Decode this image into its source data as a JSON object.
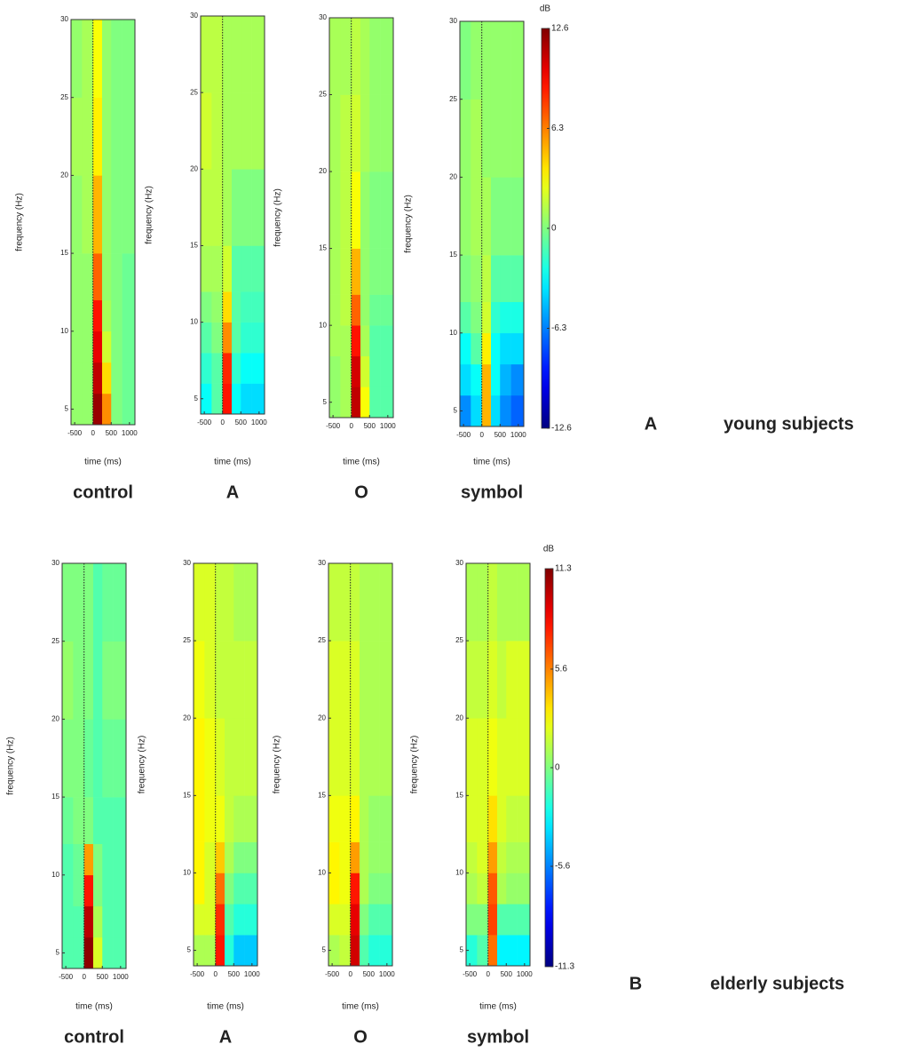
{
  "chart_data": [
    {
      "type": "heatmap",
      "title": "control",
      "xlabel": "time (ms)",
      "ylabel": "frequency (Hz)",
      "xlim": [
        -600,
        1150
      ],
      "ylim": [
        4,
        30
      ],
      "xticks": [
        -500,
        0,
        500,
        1000
      ],
      "yticks": [
        5,
        10,
        15,
        20,
        25,
        30
      ],
      "marker_x": 0,
      "xbins": [
        -600,
        -300,
        0,
        250,
        500,
        800,
        1150
      ],
      "ybins": [
        4,
        6,
        8,
        10,
        12,
        15,
        20,
        25,
        30
      ],
      "z": [
        [
          0.5,
          0.5,
          12,
          6,
          0,
          -0.5
        ],
        [
          0.5,
          0.5,
          11,
          4,
          0,
          -0.5
        ],
        [
          0.5,
          0.5,
          10,
          2,
          0,
          -0.5
        ],
        [
          0.5,
          0.5,
          9,
          1,
          0,
          -0.5
        ],
        [
          0.5,
          0.5,
          7,
          0.5,
          0,
          -0.5
        ],
        [
          0.5,
          1,
          5,
          0.5,
          0,
          0
        ],
        [
          1,
          1,
          3.5,
          0.5,
          0,
          0
        ],
        [
          0.5,
          1,
          3,
          0.5,
          0,
          0
        ]
      ]
    },
    {
      "type": "heatmap",
      "title": "A",
      "xlabel": "time (ms)",
      "ylabel": "frequency (Hz)",
      "xlim": [
        -600,
        1150
      ],
      "ylim": [
        4,
        30
      ],
      "xticks": [
        -500,
        0,
        500,
        1000
      ],
      "yticks": [
        5,
        10,
        15,
        20,
        25,
        30
      ],
      "marker_x": 0,
      "xbins": [
        -600,
        -300,
        0,
        250,
        500,
        800,
        1150
      ],
      "ybins": [
        4,
        6,
        8,
        10,
        12,
        15,
        20,
        25,
        30
      ],
      "z": [
        [
          -3,
          -1,
          9,
          -3,
          -4,
          -4
        ],
        [
          -2,
          -1,
          8.5,
          -2,
          -3,
          -3
        ],
        [
          -1,
          0,
          6,
          -1,
          -2,
          -2
        ],
        [
          0,
          0.5,
          4,
          -1,
          -1.5,
          -1.5
        ],
        [
          1,
          1,
          2,
          -1,
          -1,
          -1
        ],
        [
          1.5,
          1.5,
          1,
          0,
          0,
          0
        ],
        [
          2,
          1.5,
          1,
          1,
          1,
          1
        ],
        [
          1.5,
          1.5,
          1,
          1,
          1,
          1
        ]
      ]
    },
    {
      "type": "heatmap",
      "title": "O",
      "xlabel": "time (ms)",
      "ylabel": "frequency (Hz)",
      "xlim": [
        -600,
        1150
      ],
      "ylim": [
        4,
        30
      ],
      "xticks": [
        -500,
        0,
        500,
        1000
      ],
      "yticks": [
        5,
        10,
        15,
        20,
        25,
        30
      ],
      "marker_x": 0,
      "xbins": [
        -600,
        -300,
        0,
        250,
        500,
        800,
        1150
      ],
      "ybins": [
        4,
        6,
        8,
        10,
        12,
        15,
        20,
        25,
        30
      ],
      "z": [
        [
          0.5,
          1,
          11,
          3,
          -1,
          -1
        ],
        [
          0.5,
          1,
          10.5,
          2,
          -1,
          -1
        ],
        [
          1,
          1,
          9,
          1,
          -1,
          -1
        ],
        [
          1,
          1.5,
          7,
          0.5,
          -0.5,
          -0.5
        ],
        [
          1,
          1.5,
          5,
          0.5,
          0,
          0
        ],
        [
          1,
          1.5,
          3,
          0.5,
          0,
          0
        ],
        [
          1,
          1.5,
          2,
          1,
          0.5,
          0.5
        ],
        [
          1,
          1,
          1.5,
          1,
          0.5,
          0.5
        ]
      ]
    },
    {
      "type": "heatmap",
      "title": "symbol",
      "xlabel": "time (ms)",
      "ylabel": "frequency (Hz)",
      "xlim": [
        -600,
        1150
      ],
      "ylim": [
        4,
        30
      ],
      "xticks": [
        -500,
        0,
        500,
        1000
      ],
      "yticks": [
        5,
        10,
        15,
        20,
        25,
        30
      ],
      "marker_x": 0,
      "xbins": [
        -600,
        -300,
        0,
        250,
        500,
        800,
        1150
      ],
      "ybins": [
        4,
        6,
        8,
        10,
        12,
        15,
        20,
        25,
        30
      ],
      "z": [
        [
          -6,
          -4,
          5,
          -4,
          -6,
          -7
        ],
        [
          -4,
          -3,
          5,
          -3,
          -5,
          -6
        ],
        [
          -3,
          -1,
          3.5,
          -3,
          -4,
          -4
        ],
        [
          -1,
          0,
          2,
          -2,
          -2.5,
          -2.5
        ],
        [
          0,
          0.5,
          1.5,
          -1,
          -1,
          -1
        ],
        [
          0.5,
          1,
          1,
          0,
          0,
          0
        ],
        [
          0.5,
          1,
          0.5,
          0.5,
          0.5,
          0.5
        ],
        [
          0,
          0.5,
          0.5,
          0.5,
          0.5,
          0.5
        ]
      ]
    },
    {
      "type": "colorbar",
      "label": "dB",
      "zlim": [
        -12.6,
        12.6
      ],
      "zticks": [
        -12.6,
        -6.3,
        0,
        6.3,
        12.6
      ]
    },
    {
      "type": "heatmap",
      "title": "control",
      "xlabel": "time (ms)",
      "ylabel": "frequency (Hz)",
      "xlim": [
        -600,
        1150
      ],
      "ylim": [
        4,
        30
      ],
      "xticks": [
        -500,
        0,
        500,
        1000
      ],
      "yticks": [
        5,
        10,
        15,
        20,
        25,
        30
      ],
      "marker_x": 0,
      "xbins": [
        -600,
        -300,
        0,
        250,
        500,
        800,
        1150
      ],
      "ybins": [
        4,
        6,
        8,
        10,
        12,
        15,
        20,
        25,
        30
      ],
      "z": [
        [
          -1,
          -1,
          11,
          2,
          -1,
          -1
        ],
        [
          -1,
          -1,
          10,
          1,
          -1,
          -1
        ],
        [
          -1,
          -0.5,
          8,
          0,
          -1,
          -1
        ],
        [
          -1,
          -0.5,
          5,
          0,
          -1,
          -1
        ],
        [
          -0.5,
          0,
          0,
          -1,
          -1,
          -1
        ],
        [
          0,
          0,
          -0.5,
          -1,
          -0.5,
          -0.5
        ],
        [
          0.5,
          0,
          0,
          -1,
          0,
          0
        ],
        [
          0,
          0,
          0,
          -1,
          -0.5,
          -0.5
        ]
      ]
    },
    {
      "type": "heatmap",
      "title": "A",
      "xlabel": "time (ms)",
      "ylabel": "frequency (Hz)",
      "xlim": [
        -600,
        1150
      ],
      "ylim": [
        4,
        30
      ],
      "xticks": [
        -500,
        0,
        500,
        1000
      ],
      "yticks": [
        5,
        10,
        15,
        20,
        25,
        30
      ],
      "marker_x": 0,
      "xbins": [
        -600,
        -300,
        0,
        250,
        500,
        800,
        1150
      ],
      "ybins": [
        4,
        6,
        8,
        10,
        12,
        15,
        20,
        25,
        30
      ],
      "z": [
        [
          1,
          1,
          8,
          -2,
          -4,
          -4
        ],
        [
          2,
          2,
          7.5,
          -1,
          -2,
          -2
        ],
        [
          3,
          2,
          6,
          0,
          -1,
          -1
        ],
        [
          3,
          2,
          4,
          1,
          0,
          0
        ],
        [
          3,
          2.5,
          2.5,
          1.5,
          1,
          1
        ],
        [
          3,
          2.5,
          2,
          1.5,
          1.5,
          1.5
        ],
        [
          2.5,
          2,
          1.5,
          1.5,
          1.5,
          1.5
        ],
        [
          2,
          2,
          1.5,
          1.5,
          1,
          1
        ]
      ]
    },
    {
      "type": "heatmap",
      "title": "O",
      "xlabel": "time (ms)",
      "ylabel": "frequency (Hz)",
      "xlim": [
        -600,
        1150
      ],
      "ylim": [
        4,
        30
      ],
      "xticks": [
        -500,
        0,
        500,
        1000
      ],
      "yticks": [
        5,
        10,
        15,
        20,
        25,
        30
      ],
      "marker_x": 0,
      "xbins": [
        -600,
        -300,
        0,
        250,
        500,
        800,
        1150
      ],
      "ybins": [
        4,
        6,
        8,
        10,
        12,
        15,
        20,
        25,
        30
      ],
      "z": [
        [
          1,
          1.5,
          9.5,
          -1,
          -2,
          -2
        ],
        [
          2,
          2,
          9,
          0,
          -1,
          -1
        ],
        [
          3,
          2.5,
          8,
          1,
          0,
          0
        ],
        [
          3,
          2.5,
          5,
          1,
          0.5,
          0.5
        ],
        [
          2.5,
          2.5,
          3,
          1,
          0.5,
          0.5
        ],
        [
          2,
          2,
          2,
          1,
          1,
          1
        ],
        [
          2,
          2,
          2,
          1,
          1,
          1
        ],
        [
          1.5,
          1.5,
          1.5,
          1,
          1,
          1
        ]
      ]
    },
    {
      "type": "heatmap",
      "title": "symbol",
      "xlabel": "time (ms)",
      "ylabel": "frequency (Hz)",
      "xlim": [
        -600,
        1150
      ],
      "ylim": [
        4,
        30
      ],
      "xticks": [
        -500,
        0,
        500,
        1000
      ],
      "yticks": [
        5,
        10,
        15,
        20,
        25,
        30
      ],
      "marker_x": 0,
      "xbins": [
        -600,
        -300,
        0,
        250,
        500,
        800,
        1150
      ],
      "ybins": [
        4,
        6,
        8,
        10,
        12,
        15,
        20,
        25,
        30
      ],
      "z": [
        [
          -2,
          -1,
          6,
          -3,
          -3,
          -3
        ],
        [
          0,
          0,
          7,
          -1,
          -1,
          -1
        ],
        [
          1,
          1.5,
          6.5,
          1,
          0.5,
          0.5
        ],
        [
          1.5,
          2,
          5,
          1.5,
          1,
          1
        ],
        [
          2,
          2,
          3.5,
          2,
          1.5,
          1.5
        ],
        [
          2,
          2,
          2.5,
          2,
          2,
          2
        ],
        [
          1.5,
          1.5,
          2,
          1.5,
          2,
          2
        ],
        [
          1,
          1,
          1.5,
          1,
          1,
          1
        ]
      ]
    },
    {
      "type": "colorbar",
      "label": "dB",
      "zlim": [
        -11.3,
        11.3
      ],
      "zticks": [
        -11.3,
        -5.6,
        0,
        5.6,
        11.3
      ]
    }
  ],
  "labels": [
    {
      "letter": "A",
      "caption": "young subjects"
    },
    {
      "letter": "B",
      "caption": "elderly subjects"
    }
  ]
}
